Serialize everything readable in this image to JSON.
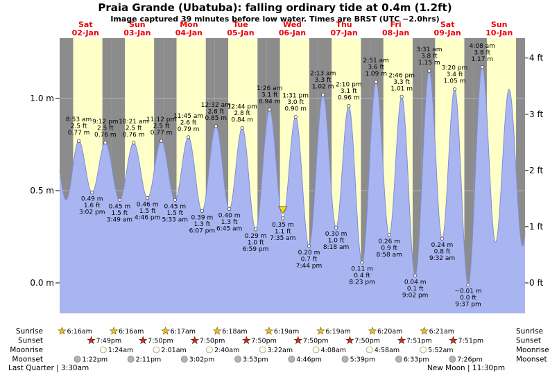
{
  "header": {
    "title": "Praia Grande (Ubatuba): falling  ordinary tide at 0.4m (1.2ft)",
    "subtitle": "Image captured 39 minutes before low water. Times are BRST (UTC −2.0hrs)"
  },
  "colors": {
    "night": "#8c8c8c",
    "day": "#ffffc8",
    "water": "#a9b5f1",
    "water_edge": "#7e8ed8",
    "day_label_red": "#ee0000",
    "sunrise_star": "#f2c21d",
    "sunrise_star_edge": "#7a6200",
    "sunset_star": "#c8331a",
    "sunset_star_edge": "#5f180c",
    "moonrise_moon": "#fffde8",
    "moonrise_moon_edge": "#9a9a9a",
    "moonset_moon": "#b3b3b3",
    "moonset_moon_edge": "#858585",
    "marker": "#ffdf00"
  },
  "axes": {
    "left": [
      {
        "label": "1.0 m",
        "value": 1.0
      },
      {
        "label": "0.5 m",
        "value": 0.5
      },
      {
        "label": "0.0 m",
        "value": 0.0
      }
    ],
    "right": [
      {
        "label": "4 ft",
        "value": 4
      },
      {
        "label": "3 ft",
        "value": 3
      },
      {
        "label": "2 ft",
        "value": 2
      },
      {
        "label": "1 ft",
        "value": 1
      },
      {
        "label": "0 ft",
        "value": 0
      }
    ]
  },
  "chart_data": {
    "type": "area",
    "title": "Praia Grande (Ubatuba): falling ordinary tide at 0.4m (1.2ft)",
    "ylabel_left": "m",
    "ylabel_right": "ft",
    "ylim": [
      -0.17,
      1.33
    ],
    "x_span_days": 9,
    "categories": [
      {
        "day": "Sat",
        "date": "02-Jan"
      },
      {
        "day": "Sun",
        "date": "03-Jan"
      },
      {
        "day": "Mon",
        "date": "04-Jan"
      },
      {
        "day": "Tue",
        "date": "05-Jan"
      },
      {
        "day": "Wed",
        "date": "06-Jan"
      },
      {
        "day": "Thu",
        "date": "07-Jan"
      },
      {
        "day": "Fri",
        "date": "08-Jan"
      },
      {
        "day": "Sat",
        "date": "09-Jan"
      },
      {
        "day": "Sun",
        "date": "10-Jan"
      }
    ],
    "band": {
      "sunrise_f": 0.2617,
      "sunset_f": 0.8263
    },
    "extremes": [
      {
        "kind": "H",
        "day": 0,
        "t": 8.883,
        "time": "8:53 am",
        "ft": "2.5 ft",
        "m": "0.77 m",
        "value": 0.77
      },
      {
        "kind": "L",
        "day": 0,
        "t": 15.033,
        "time": "3:02 pm",
        "ft": "1.6 ft",
        "m": "0.49 m",
        "value": 0.49
      },
      {
        "kind": "H",
        "day": 0,
        "t": 21.2,
        "time": "9:12 pm",
        "ft": "2.5 ft",
        "m": "0.76 m",
        "value": 0.76
      },
      {
        "kind": "L",
        "day": 1,
        "t": 3.817,
        "time": "3:49 am",
        "ft": "1.5 ft",
        "m": "0.45 m",
        "value": 0.45
      },
      {
        "kind": "H",
        "day": 1,
        "t": 10.35,
        "time": "10:21 am",
        "ft": "2.5 ft",
        "m": "0.76 m",
        "value": 0.76
      },
      {
        "kind": "L",
        "day": 1,
        "t": 16.767,
        "time": "4:46 pm",
        "ft": "1.5 ft",
        "m": "0.46 m",
        "value": 0.46
      },
      {
        "kind": "H",
        "day": 1,
        "t": 23.2,
        "time": "11:12 pm",
        "ft": "2.5 ft",
        "m": "0.77 m",
        "value": 0.77
      },
      {
        "kind": "L",
        "day": 2,
        "t": 5.55,
        "time": "5:33 am",
        "ft": "1.5 ft",
        "m": "0.45 m",
        "value": 0.45
      },
      {
        "kind": "H",
        "day": 2,
        "t": 11.75,
        "time": "11:45 am",
        "ft": "2.6 ft",
        "m": "0.79 m",
        "value": 0.79
      },
      {
        "kind": "L",
        "day": 2,
        "t": 18.117,
        "time": "6:07 pm",
        "ft": "1.3 ft",
        "m": "0.39 m",
        "value": 0.39
      },
      {
        "kind": "H",
        "day": 3,
        "t": 0.533,
        "time": "12:32 am",
        "ft": "2.8 ft",
        "m": "0.85 m",
        "value": 0.85
      },
      {
        "kind": "L",
        "day": 3,
        "t": 6.75,
        "time": "6:45 am",
        "ft": "1.3 ft",
        "m": "0.40 m",
        "value": 0.4
      },
      {
        "kind": "H",
        "day": 3,
        "t": 12.733,
        "time": "12:44 pm",
        "ft": "2.8 ft",
        "m": "0.84 m",
        "value": 0.84
      },
      {
        "kind": "L",
        "day": 3,
        "t": 18.983,
        "time": "6:59 pm",
        "ft": "1.0 ft",
        "m": "0.29 m",
        "value": 0.29
      },
      {
        "kind": "H",
        "day": 4,
        "t": 1.433,
        "time": "1:26 am",
        "ft": "3.1 ft",
        "m": "0.94 m",
        "value": 0.94
      },
      {
        "kind": "L",
        "day": 4,
        "t": 7.583,
        "time": "7:35 am",
        "ft": "1.1 ft",
        "m": "0.35 m",
        "value": 0.35,
        "marker": true
      },
      {
        "kind": "H",
        "day": 4,
        "t": 13.517,
        "time": "1:31 pm",
        "ft": "3.0 ft",
        "m": "0.90 m",
        "value": 0.9
      },
      {
        "kind": "L",
        "day": 4,
        "t": 19.733,
        "time": "7:44 pm",
        "ft": "0.7 ft",
        "m": "0.20 m",
        "value": 0.2
      },
      {
        "kind": "H",
        "day": 5,
        "t": 2.217,
        "time": "2:13 am",
        "ft": "3.3 ft",
        "m": "1.02 m",
        "value": 1.02
      },
      {
        "kind": "L",
        "day": 5,
        "t": 8.3,
        "time": "8:18 am",
        "ft": "1.0 ft",
        "m": "0.30 m",
        "value": 0.3
      },
      {
        "kind": "H",
        "day": 5,
        "t": 14.167,
        "time": "2:10 pm",
        "ft": "3.1 ft",
        "m": "0.96 m",
        "value": 0.96
      },
      {
        "kind": "L",
        "day": 5,
        "t": 20.383,
        "time": "8:23 pm",
        "ft": "0.4 ft",
        "m": "0.11 m",
        "value": 0.11
      },
      {
        "kind": "H",
        "day": 6,
        "t": 2.85,
        "time": "2:51 am",
        "ft": "3.6 ft",
        "m": "1.09 m",
        "value": 1.09
      },
      {
        "kind": "L",
        "day": 6,
        "t": 8.967,
        "time": "8:58 am",
        "ft": "0.9 ft",
        "m": "0.26 m",
        "value": 0.26
      },
      {
        "kind": "H",
        "day": 6,
        "t": 14.767,
        "time": "2:46 pm",
        "ft": "3.3 ft",
        "m": "1.01 m",
        "value": 1.01
      },
      {
        "kind": "L",
        "day": 6,
        "t": 21.033,
        "time": "9:02 pm",
        "ft": "0.1 ft",
        "m": "0.04 m",
        "value": 0.04
      },
      {
        "kind": "H",
        "day": 7,
        "t": 3.517,
        "time": "3:31 am",
        "ft": "3.8 ft",
        "m": "1.15 m",
        "value": 1.15
      },
      {
        "kind": "L",
        "day": 7,
        "t": 9.533,
        "time": "9:32 am",
        "ft": "0.8 ft",
        "m": "0.24 m",
        "value": 0.24
      },
      {
        "kind": "H",
        "day": 7,
        "t": 15.333,
        "time": "3:20 pm",
        "ft": "3.4 ft",
        "m": "1.05 m",
        "value": 1.05
      },
      {
        "kind": "L",
        "day": 7,
        "t": 21.617,
        "time": "9:37 pm",
        "ft": "0.0 ft",
        "m": "−0.01 m",
        "value": -0.01
      },
      {
        "kind": "H",
        "day": 8,
        "t": 4.133,
        "time": "4:08 am",
        "ft": "3.8 ft",
        "m": "1.17 m",
        "value": 1.17
      }
    ],
    "phantom_extremes": [
      {
        "t": -2.8,
        "v": 0.75
      },
      {
        "t": 3.0,
        "v": 0.45
      },
      {
        "t": 202.3,
        "v": 0.22
      },
      {
        "t": 208.6,
        "v": 1.05
      },
      {
        "t": 214.9,
        "v": 0.2
      },
      {
        "t": 221.0,
        "v": 1.1
      }
    ]
  },
  "astro": {
    "row_labels": [
      "Sunrise",
      "Sunset",
      "Moonrise",
      "Moonset"
    ],
    "sunrise": [
      {
        "day": 0,
        "t": 6.267,
        "label": "6:16am"
      },
      {
        "day": 1,
        "t": 6.267,
        "label": "6:16am"
      },
      {
        "day": 2,
        "t": 6.283,
        "label": "6:17am"
      },
      {
        "day": 3,
        "t": 6.3,
        "label": "6:18am"
      },
      {
        "day": 4,
        "t": 6.317,
        "label": "6:19am"
      },
      {
        "day": 5,
        "t": 6.317,
        "label": "6:19am"
      },
      {
        "day": 6,
        "t": 6.333,
        "label": "6:20am"
      },
      {
        "day": 7,
        "t": 6.35,
        "label": "6:21am"
      }
    ],
    "sunset": [
      {
        "day": 0,
        "t": 19.817,
        "label": "7:49pm"
      },
      {
        "day": 1,
        "t": 19.833,
        "label": "7:50pm"
      },
      {
        "day": 2,
        "t": 19.833,
        "label": "7:50pm"
      },
      {
        "day": 3,
        "t": 19.833,
        "label": "7:50pm"
      },
      {
        "day": 4,
        "t": 19.833,
        "label": "7:50pm"
      },
      {
        "day": 5,
        "t": 19.833,
        "label": "7:50pm"
      },
      {
        "day": 6,
        "t": 19.85,
        "label": "7:51pm"
      },
      {
        "day": 7,
        "t": 19.85,
        "label": "7:51pm"
      }
    ],
    "moonrise": [
      {
        "day": 1,
        "t": 1.4,
        "label": "1:24am"
      },
      {
        "day": 2,
        "t": 2.017,
        "label": "2:01am"
      },
      {
        "day": 3,
        "t": 2.667,
        "label": "2:40am"
      },
      {
        "day": 4,
        "t": 3.367,
        "label": "3:22am"
      },
      {
        "day": 5,
        "t": 4.133,
        "label": "4:08am"
      },
      {
        "day": 6,
        "t": 4.967,
        "label": "4:58am"
      },
      {
        "day": 7,
        "t": 5.867,
        "label": "5:52am"
      }
    ],
    "moonset": [
      {
        "day": 0,
        "t": 13.367,
        "label": "1:22pm"
      },
      {
        "day": 1,
        "t": 14.183,
        "label": "2:11pm"
      },
      {
        "day": 2,
        "t": 15.033,
        "label": "3:02pm"
      },
      {
        "day": 3,
        "t": 15.883,
        "label": "3:53pm"
      },
      {
        "day": 4,
        "t": 16.767,
        "label": "4:46pm"
      },
      {
        "day": 5,
        "t": 17.65,
        "label": "5:39pm"
      },
      {
        "day": 6,
        "t": 18.55,
        "label": "6:33pm"
      },
      {
        "day": 7,
        "t": 19.433,
        "label": "7:26pm"
      }
    ],
    "phase_left": "Last Quarter | 3:30am",
    "phase_right": "New Moon | 11:30pm"
  }
}
